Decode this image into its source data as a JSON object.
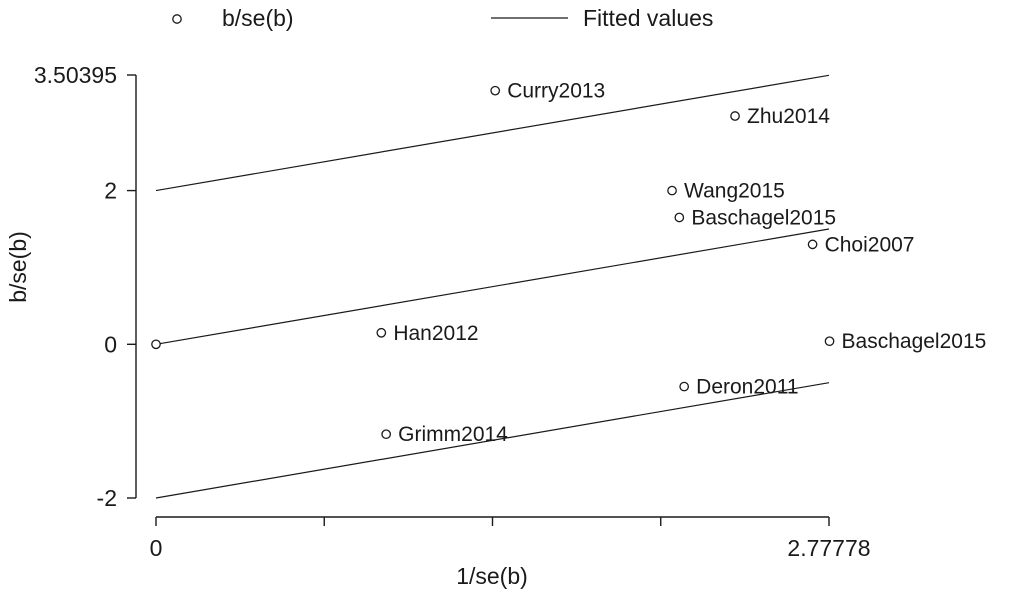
{
  "chart_data": {
    "type": "scatter",
    "xlabel": "1/se(b)",
    "ylabel": "b/se(b)",
    "xlim": [
      0,
      2.77778
    ],
    "ylim": [
      -2,
      3.50395
    ],
    "x_ticks": [
      0,
      0.69444,
      1.38889,
      2.08333,
      2.77778
    ],
    "x_tick_labels": [
      "0",
      "",
      "",
      "",
      "2.77778"
    ],
    "y_ticks": [
      -2,
      0,
      2,
      3.50395
    ],
    "y_tick_labels": [
      "-2",
      "0",
      "2",
      "3.50395"
    ],
    "legend": {
      "position": "top",
      "entries": [
        {
          "label": "b/se(b)",
          "symbol": "hollow-circle"
        },
        {
          "label": "Fitted values",
          "symbol": "line"
        }
      ]
    },
    "series": [
      {
        "name": "b/se(b)",
        "kind": "markers",
        "points": [
          {
            "x": 0.0,
            "y": 0.0,
            "label": ""
          },
          {
            "x": 0.93,
            "y": 0.15,
            "label": "Han2012"
          },
          {
            "x": 0.95,
            "y": -1.17,
            "label": "Grimm2014"
          },
          {
            "x": 1.4,
            "y": 3.3,
            "label": "Curry2013"
          },
          {
            "x": 2.13,
            "y": 2.0,
            "label": "Wang2015"
          },
          {
            "x": 2.16,
            "y": 1.65,
            "label": "Baschagel2015"
          },
          {
            "x": 2.18,
            "y": -0.55,
            "label": "Deron2011"
          },
          {
            "x": 2.39,
            "y": 2.97,
            "label": "Zhu2014"
          },
          {
            "x": 2.71,
            "y": 1.3,
            "label": "Choi2007"
          },
          {
            "x": 2.78,
            "y": 0.04,
            "label": "Baschagel2015"
          }
        ]
      },
      {
        "name": "Fitted values",
        "kind": "lines",
        "lines": [
          {
            "x": [
              0,
              2.77778
            ],
            "y": [
              2.0,
              3.5
            ]
          },
          {
            "x": [
              0,
              2.77778
            ],
            "y": [
              0.0,
              1.5
            ]
          },
          {
            "x": [
              0,
              2.77778
            ],
            "y": [
              -2.0,
              -0.5
            ]
          }
        ]
      }
    ],
    "grid": false
  }
}
